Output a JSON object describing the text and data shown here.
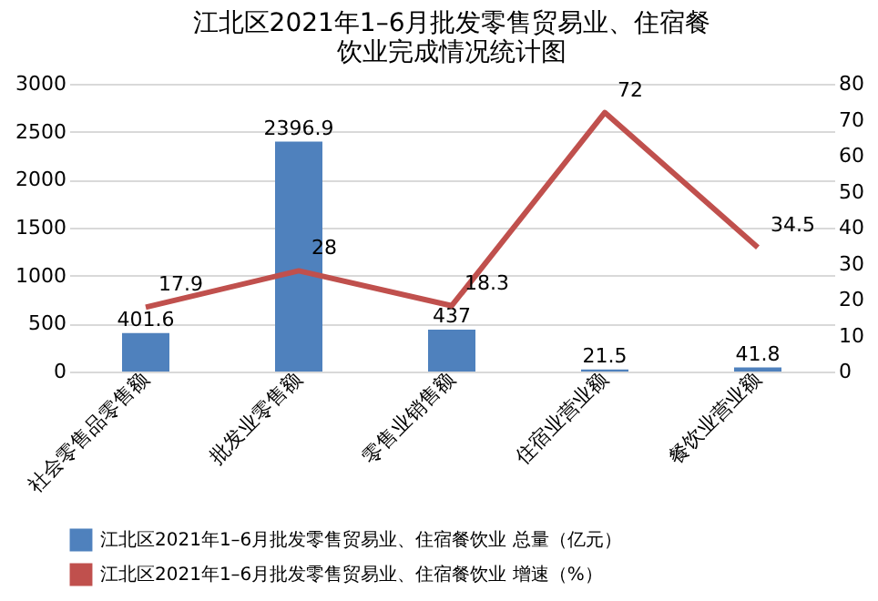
{
  "chart_data": {
    "type": "bar",
    "title": "江北区2021年1–6月批发零售贸易业、住宿餐饮业完成情况统计图",
    "categories": [
      "社会零售品零售额",
      "批发业零售额",
      "零售业销售额",
      "住宿业营业额",
      "餐饮业营业额"
    ],
    "series": [
      {
        "name": "江北区2021年1–6月批发零售贸易业、住宿餐饮业 总量（亿元）",
        "type": "bar",
        "color": "#4f81bd",
        "values": [
          401.6,
          2396.9,
          437,
          21.5,
          41.8
        ]
      },
      {
        "name": "江北区2021年1–6月批发零售贸易业、住宿餐饮业 增速（%）",
        "type": "line",
        "axis": "y2",
        "color": "#c0504d",
        "values": [
          17.9,
          28,
          18.3,
          72,
          34.5
        ]
      }
    ],
    "ylim": [
      0,
      3000
    ],
    "yticks": [
      0,
      500,
      1000,
      1500,
      2000,
      2500,
      3000
    ],
    "y2lim": [
      0,
      80
    ],
    "y2ticks": [
      0,
      10,
      20,
      30,
      40,
      50,
      60,
      70,
      80
    ],
    "data_labels": true,
    "grid": "y",
    "legend": "bottom"
  }
}
